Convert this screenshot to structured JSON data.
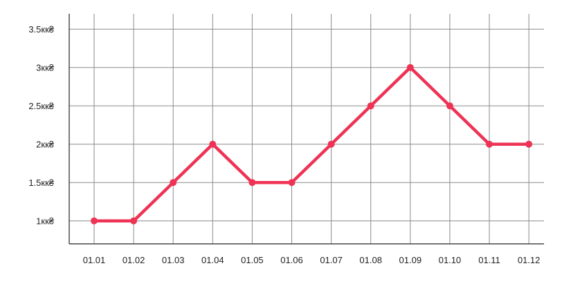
{
  "chart_data": {
    "type": "line",
    "title": "",
    "xlabel": "",
    "ylabel": "",
    "categories": [
      "01.01",
      "01.02",
      "01.03",
      "01.04",
      "01.05",
      "01.06",
      "01.07",
      "01.08",
      "01.09",
      "01.10",
      "01.11",
      "01.12"
    ],
    "series": [
      {
        "values": [
          1,
          1,
          1.5,
          2,
          1.5,
          1.5,
          2,
          2.5,
          3,
          2.5,
          2,
          2
        ]
      }
    ],
    "ylim": [
      0.7,
      3.7
    ],
    "y_ticks": [
      1,
      1.5,
      2,
      2.5,
      3,
      3.5
    ],
    "y_tick_labels": [
      "1кк₴",
      "1.5кк₴",
      "2кк₴",
      "2.5кк₴",
      "3кк₴",
      "3.5кк₴"
    ],
    "grid": true,
    "legend": "none",
    "colors": {
      "line": "#EE3355",
      "grid": "#8A8A8A",
      "axis": "#222222"
    }
  }
}
